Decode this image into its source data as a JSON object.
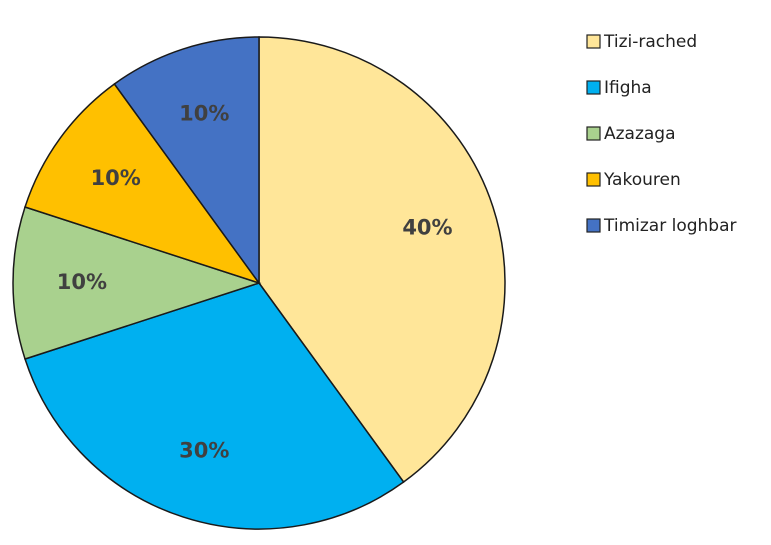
{
  "chart_data": {
    "type": "pie",
    "categories": [
      "Tizi-rached",
      "Ifigha",
      "Azazaga",
      "Yakouren",
      "Timizar loghbar"
    ],
    "values": [
      40,
      30,
      10,
      10,
      10
    ],
    "value_labels": [
      "40%",
      "30%",
      "10%",
      "10%",
      "10%"
    ],
    "colors": [
      "#FFE699",
      "#00B0F0",
      "#A9D18E",
      "#FFC000",
      "#4472C4"
    ],
    "legend": "right"
  }
}
